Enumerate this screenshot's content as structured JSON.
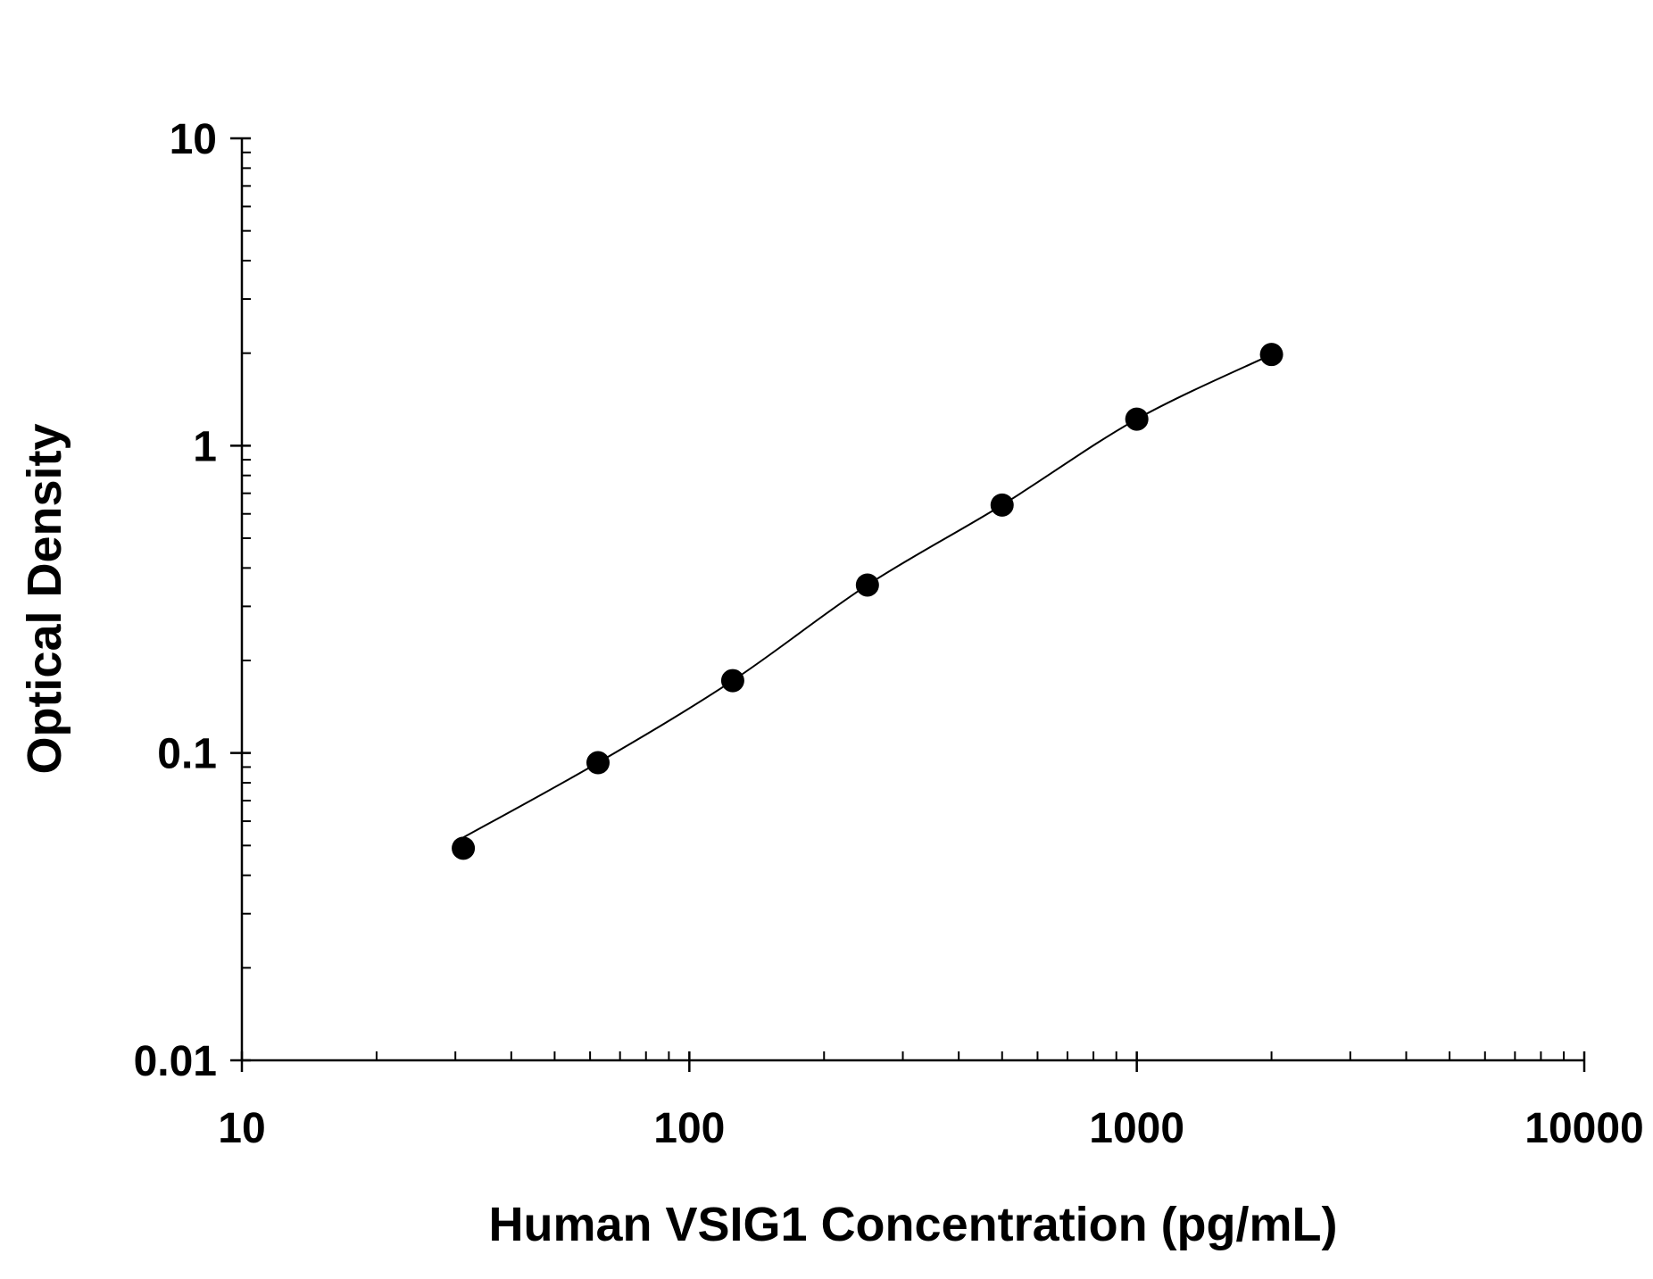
{
  "chart_data": {
    "type": "scatter",
    "title": "",
    "xlabel": "Human VSIG1 Concentration (pg/mL)",
    "ylabel": "Optical Density",
    "x_scale": "log",
    "y_scale": "log",
    "xlim": [
      10,
      10000
    ],
    "ylim": [
      0.01,
      10
    ],
    "x_tick_labels": [
      "10",
      "100",
      "1000",
      "10000"
    ],
    "y_tick_labels": [
      "0.01",
      "0.1",
      "1",
      "10"
    ],
    "grid": false,
    "fit_curve": true,
    "marker_color": "#000000",
    "series": [
      {
        "x": [
          31.25,
          62.5,
          125,
          250,
          500,
          1000,
          2000
        ],
        "y": [
          0.049,
          0.093,
          0.172,
          0.352,
          0.641,
          1.22,
          1.98
        ]
      }
    ]
  }
}
